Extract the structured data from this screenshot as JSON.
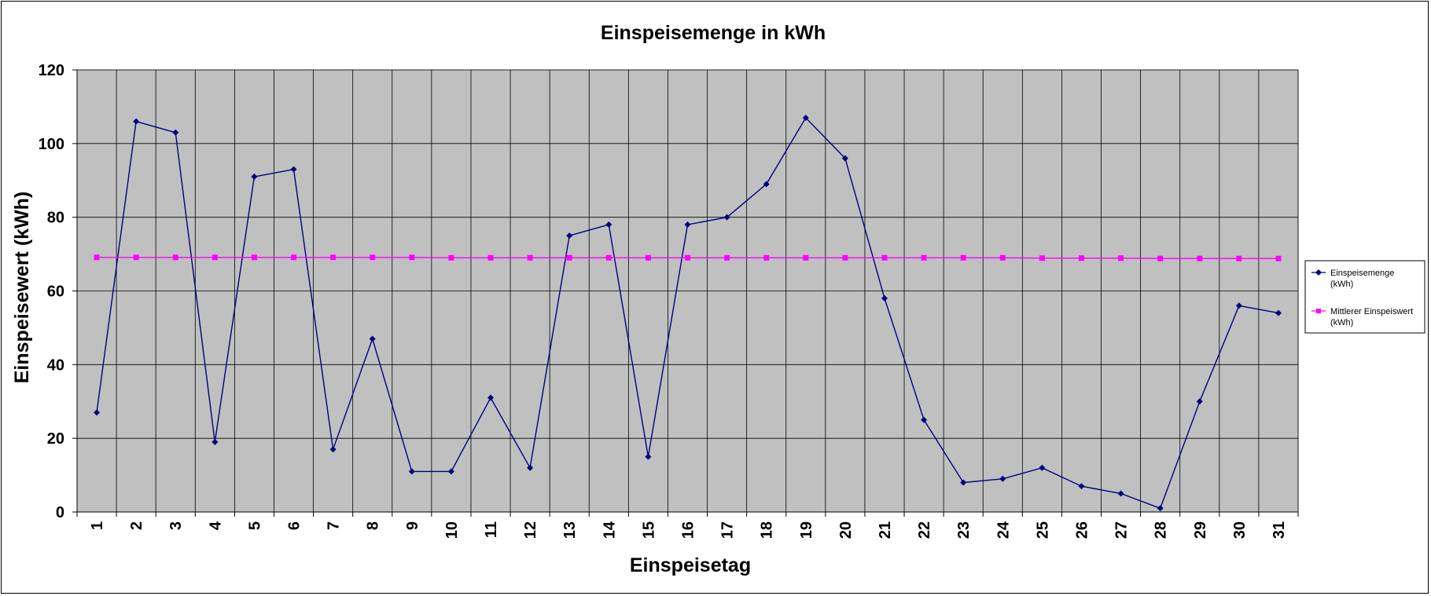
{
  "chart_data": {
    "type": "line",
    "title": "Einspeisemenge in kWh",
    "xlabel": "Einspeisetag",
    "ylabel": "Einspeisewert  (kWh)",
    "ylim": [
      0,
      120
    ],
    "yticks": [
      0,
      20,
      40,
      60,
      80,
      100,
      120
    ],
    "grid": true,
    "legend_position": "right",
    "categories": [
      "1",
      "2",
      "3",
      "4",
      "5",
      "6",
      "7",
      "8",
      "9",
      "10",
      "11",
      "12",
      "13",
      "14",
      "15",
      "16",
      "17",
      "18",
      "19",
      "20",
      "21",
      "22",
      "23",
      "24",
      "25",
      "26",
      "27",
      "28",
      "29",
      "30",
      "31"
    ],
    "series": [
      {
        "name": "Einspeisemenge (kWh)",
        "legend_lines": [
          "Einspeisemenge",
          "(kWh)"
        ],
        "color": "#000080",
        "marker": "diamond",
        "values": [
          27,
          106,
          103,
          19,
          91,
          93,
          17,
          47,
          11,
          11,
          31,
          12,
          75,
          78,
          15,
          78,
          80,
          89,
          107,
          96,
          58,
          25,
          8,
          9,
          12,
          7,
          5,
          1,
          30,
          56,
          54
        ]
      },
      {
        "name": "Mittlerer Einspeiswert (kWh)",
        "legend_lines": [
          "Mittlerer Einspeiswert",
          "(kWh)"
        ],
        "color": "#ff00ff",
        "marker": "square",
        "values": [
          69.1,
          69.1,
          69.1,
          69.1,
          69.1,
          69.1,
          69.1,
          69.1,
          69.1,
          69.0,
          69.0,
          69.0,
          69.0,
          69.0,
          69.0,
          69.0,
          69.0,
          69.0,
          69.0,
          69.0,
          69.0,
          69.0,
          69.0,
          69.0,
          68.9,
          68.9,
          68.9,
          68.8,
          68.8,
          68.8,
          68.8
        ]
      }
    ],
    "colors": {
      "plot_background": "#c0c0c0",
      "grid": "#000000"
    }
  }
}
